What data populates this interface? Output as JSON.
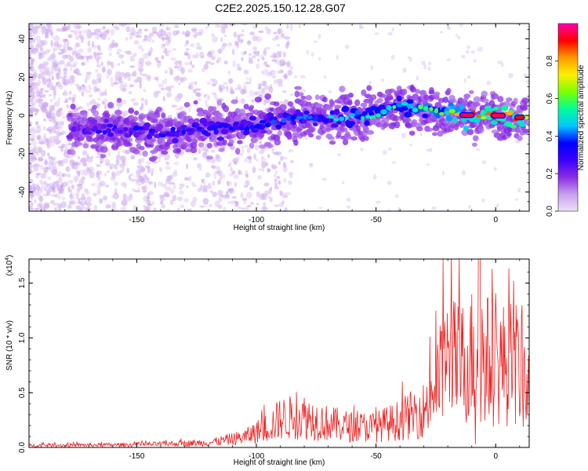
{
  "title": "C2E2.2025.150.12.28.G07",
  "colors": {
    "snr_line": "#ee2222",
    "axes": "#000000"
  },
  "chart_data": [
    {
      "id": "spectrogram",
      "type": "heatmap",
      "xlabel": "Height of straight line (km)",
      "ylabel": "Frequency (Hz)",
      "xlim": [
        -195,
        14
      ],
      "ylim": [
        -50,
        48
      ],
      "x_ticks": [
        -150,
        -100,
        -50,
        0
      ],
      "y_ticks": [
        -40,
        -20,
        0,
        20,
        40
      ],
      "colorbar": {
        "label": "Normalized spectral amplitude",
        "range": [
          0,
          1
        ],
        "ticks": [
          0.0,
          0.2,
          0.4,
          0.6,
          0.8
        ],
        "colormap": [
          "#f0e0f8",
          "#c7a0ee",
          "#8a2be2",
          "#3a00ff",
          "#0000ff",
          "#00c8ff",
          "#00ff99",
          "#7dff00",
          "#ffee00",
          "#ff9900",
          "#ff0000",
          "#ff00aa"
        ]
      },
      "ridge": [
        {
          "x": -175,
          "f": -8,
          "amp": 0.3
        },
        {
          "x": -160,
          "f": -7,
          "amp": 0.33
        },
        {
          "x": -145,
          "f": -8,
          "amp": 0.3
        },
        {
          "x": -135,
          "f": -10,
          "amp": 0.32
        },
        {
          "x": -125,
          "f": -7,
          "amp": 0.35
        },
        {
          "x": -110,
          "f": -6,
          "amp": 0.35
        },
        {
          "x": -100,
          "f": -5,
          "amp": 0.38
        },
        {
          "x": -90,
          "f": -3,
          "amp": 0.4
        },
        {
          "x": -80,
          "f": -1,
          "amp": 0.42
        },
        {
          "x": -70,
          "f": -2,
          "amp": 0.45
        },
        {
          "x": -60,
          "f": -1,
          "amp": 0.5
        },
        {
          "x": -50,
          "f": 1,
          "amp": 0.55
        },
        {
          "x": -40,
          "f": 5,
          "amp": 0.55
        },
        {
          "x": -30,
          "f": 3,
          "amp": 0.6
        },
        {
          "x": -20,
          "f": 1,
          "amp": 0.65
        },
        {
          "x": -10,
          "f": 0,
          "amp": 0.85
        },
        {
          "x": 0,
          "f": 0,
          "amp": 0.9
        },
        {
          "x": 10,
          "f": -1,
          "amp": 0.85
        }
      ]
    },
    {
      "id": "snr",
      "type": "line",
      "xlabel": "Height of straight line (km)",
      "ylabel": "SNR (10 * v/v)",
      "y_multiplier": "(x10",
      "y_exponent": "4",
      "y_multiplier_close": ")",
      "xlim": [
        -195,
        14
      ],
      "ylim": [
        0,
        1.72
      ],
      "x_ticks": [
        -150,
        -100,
        -50,
        0
      ],
      "y_ticks": [
        0.0,
        0.5,
        1.0,
        1.5
      ],
      "y_tick_labels": [
        "0.0",
        "0.5",
        "1.0",
        "1.5"
      ],
      "envelope": [
        {
          "x": -195,
          "y": 0.03
        },
        {
          "x": -150,
          "y": 0.04
        },
        {
          "x": -120,
          "y": 0.07
        },
        {
          "x": -105,
          "y": 0.15
        },
        {
          "x": -95,
          "y": 0.3
        },
        {
          "x": -90,
          "y": 0.42
        },
        {
          "x": -80,
          "y": 0.45
        },
        {
          "x": -70,
          "y": 0.35
        },
        {
          "x": -60,
          "y": 0.3
        },
        {
          "x": -50,
          "y": 0.3
        },
        {
          "x": -40,
          "y": 0.4
        },
        {
          "x": -30,
          "y": 0.55
        },
        {
          "x": -23,
          "y": 1.05
        },
        {
          "x": -20,
          "y": 1.3
        },
        {
          "x": -15,
          "y": 1.2
        },
        {
          "x": -8,
          "y": 1.4
        },
        {
          "x": 0,
          "y": 1.2
        },
        {
          "x": 8,
          "y": 1.25
        },
        {
          "x": 14,
          "y": 0.9
        }
      ]
    }
  ]
}
